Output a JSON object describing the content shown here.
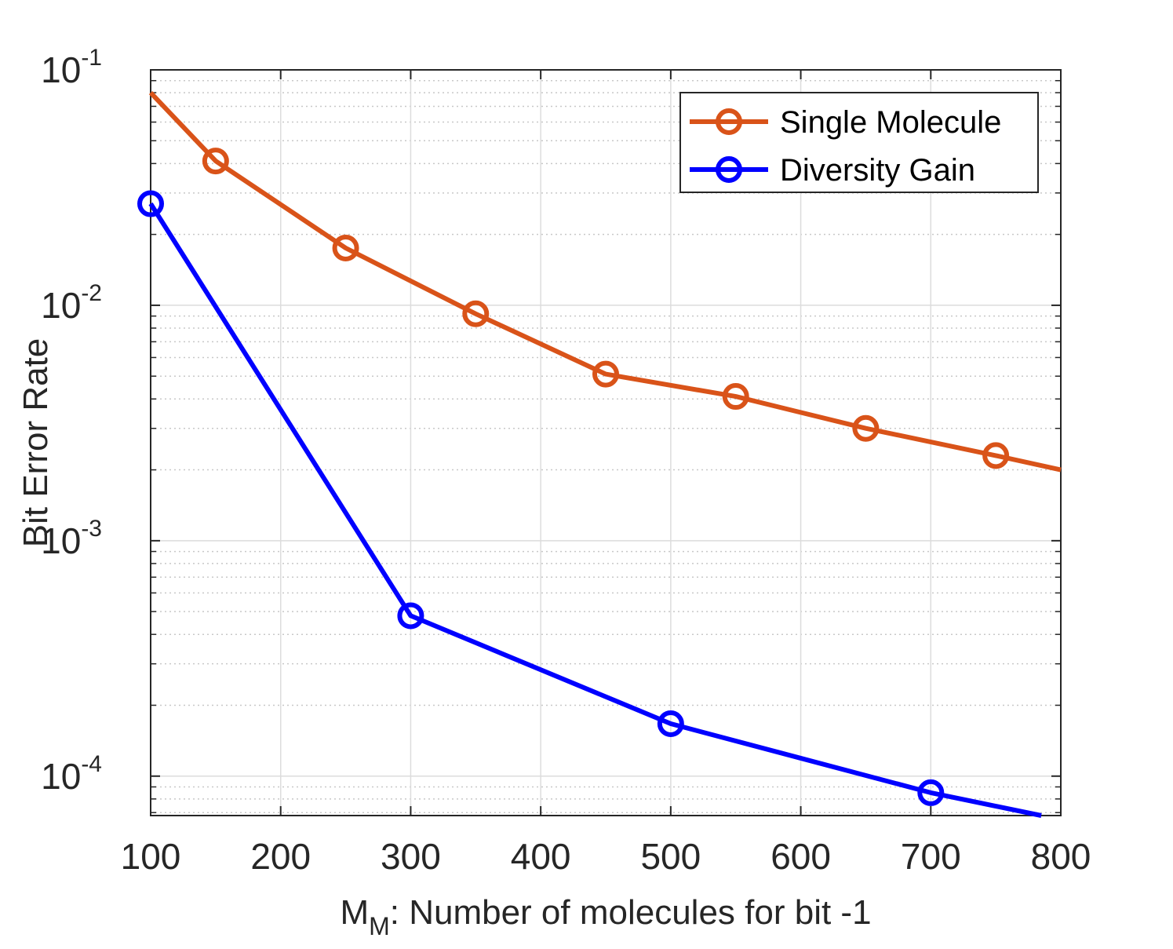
{
  "chart_data": {
    "type": "line",
    "xlabel": {
      "main": "M",
      "sub": "M",
      "rest": ": Number of molecules for bit -1"
    },
    "ylabel": "Bit Error Rate",
    "xlim": [
      100,
      800
    ],
    "ylim": [
      6.8e-05,
      0.1
    ],
    "yscale": "log",
    "grid": true,
    "legend_position": "top-right",
    "xticks": [
      "100",
      "200",
      "300",
      "400",
      "500",
      "600",
      "700",
      "800"
    ],
    "yticks": [
      {
        "value": 0.1,
        "base": "10",
        "exp": "-1"
      },
      {
        "value": 0.01,
        "base": "10",
        "exp": "-2"
      },
      {
        "value": 0.001,
        "base": "10",
        "exp": "-3"
      },
      {
        "value": 0.0001,
        "base": "10",
        "exp": "-4"
      }
    ],
    "series": [
      {
        "name": "Single Molecule",
        "color": "#D95319",
        "x": [
          100,
          150,
          250,
          350,
          450,
          550,
          650,
          750,
          800
        ],
        "y": [
          0.08,
          0.041,
          0.0175,
          0.0092,
          0.0051,
          0.0041,
          0.003,
          0.0023,
          0.002
        ],
        "markers": [
          false,
          true,
          true,
          true,
          true,
          true,
          true,
          true,
          false
        ]
      },
      {
        "name": "Diversity Gain",
        "color": "#0000FF",
        "x": [
          100,
          300,
          500,
          700,
          785
        ],
        "y": [
          0.027,
          0.00048,
          0.000167,
          8.5e-05,
          6.8e-05
        ],
        "markers": [
          true,
          true,
          true,
          true,
          false
        ]
      }
    ]
  }
}
